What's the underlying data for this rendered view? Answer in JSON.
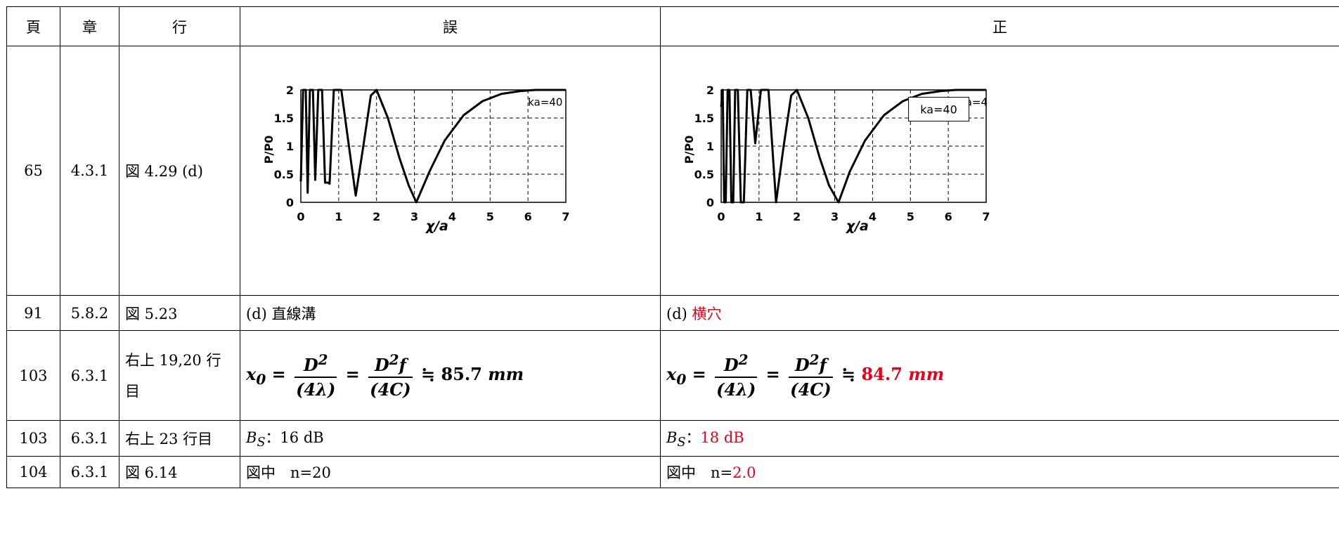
{
  "headers": [
    "頁",
    "章",
    "行",
    "誤",
    "正"
  ],
  "rows": [
    {
      "page": "65",
      "chapter": "4.3.1",
      "line": "図 4.29 (d)"
    },
    {
      "page": "91",
      "chapter": "5.8.2",
      "line": "図 5.23",
      "wrong": "(d) 直線溝",
      "right_prefix": "(d) ",
      "right_fix": "横穴"
    },
    {
      "page": "103",
      "chapter": "6.3.1",
      "line": "右上 19,20 行目",
      "wrong_value": "85.7",
      "right_value": "84.7",
      "unit": "mm"
    },
    {
      "page": "103",
      "chapter": "6.3.1",
      "line": "右上 23 行目",
      "wrong_prefix": "B",
      "wrong_sub": "S",
      "wrong_text": "：16 dB",
      "right_prefix": "B",
      "right_sub": "S",
      "right_text": "：",
      "right_fix": "18 dB"
    },
    {
      "page": "104",
      "chapter": "6.3.1",
      "line": "図 6.14",
      "wrong": "図中　n=20",
      "right_prefix": "図中　n=",
      "right_fix": "2.0"
    }
  ],
  "formula": {
    "lhs": "x",
    "lhs_sub": "0",
    "frac1_num": "D",
    "frac1_num_sup": "2",
    "frac1_den": "(4λ)",
    "frac2_num": "D",
    "frac2_num_sup": "2",
    "frac2_num_tail": "f",
    "frac2_den": "(4C)",
    "approx": "≒"
  },
  "chart_data": [
    {
      "type": "line",
      "xlabel": "χ/a",
      "ylabel": "P/P0",
      "xticks": [
        "0",
        "1",
        "2",
        "3",
        "4",
        "5",
        "6",
        "7"
      ],
      "yticks": [
        "0",
        "0.5",
        "1",
        "1.5",
        "2"
      ],
      "xlim": [
        0,
        7
      ],
      "ylim": [
        0,
        2
      ],
      "grid": "dashed",
      "annotation": "ka=40",
      "series": [
        {
          "x": [
            0.0,
            0.06,
            0.13,
            0.18,
            0.24,
            0.32,
            0.38,
            0.46,
            0.56,
            0.64,
            0.72,
            0.76,
            0.87,
            1.07,
            1.27,
            1.45,
            1.65,
            1.85,
            2.0,
            2.3,
            2.6,
            2.85,
            3.05,
            3.4,
            3.8,
            4.3,
            4.8,
            5.3,
            5.8,
            6.2,
            6.6,
            7.0
          ],
          "y": [
            0.37,
            2.0,
            2.0,
            0.17,
            2.0,
            2.0,
            0.4,
            2.0,
            2.0,
            0.35,
            0.35,
            0.33,
            2.0,
            2.0,
            1.0,
            0.12,
            1.0,
            1.9,
            2.0,
            1.5,
            0.8,
            0.3,
            0.0,
            0.55,
            1.1,
            1.55,
            1.8,
            1.93,
            1.98,
            2.0,
            2.0,
            2.0
          ]
        }
      ]
    },
    {
      "type": "line",
      "xlabel": "χ/a",
      "ylabel": "P/P0",
      "xticks": [
        "0",
        "1",
        "2",
        "3",
        "4",
        "5",
        "6",
        "7"
      ],
      "yticks": [
        "0",
        "0.5",
        "1",
        "1.5",
        "2"
      ],
      "xlim": [
        0,
        7
      ],
      "ylim": [
        0,
        2
      ],
      "grid": "dashed",
      "annotation": "ka=40",
      "annotation_behind": "ka=4",
      "series": [
        {
          "x": [
            0.0,
            0.04,
            0.08,
            0.12,
            0.17,
            0.22,
            0.27,
            0.32,
            0.37,
            0.44,
            0.52,
            0.6,
            0.69,
            0.78,
            0.9,
            1.05,
            1.25,
            1.45,
            1.65,
            1.85,
            2.0,
            2.3,
            2.6,
            2.85,
            3.1,
            3.4,
            3.8,
            4.3,
            4.8,
            5.3,
            5.8,
            6.2,
            6.6,
            7.0
          ],
          "y": [
            1.7,
            2.0,
            0.0,
            0.0,
            2.0,
            2.0,
            0.0,
            0.0,
            2.0,
            2.0,
            0.0,
            0.0,
            2.0,
            2.0,
            1.05,
            2.0,
            2.0,
            0.0,
            1.0,
            1.9,
            2.0,
            1.5,
            0.8,
            0.3,
            0.0,
            0.55,
            1.1,
            1.55,
            1.8,
            1.93,
            1.98,
            2.0,
            2.0,
            2.0
          ]
        }
      ]
    }
  ]
}
